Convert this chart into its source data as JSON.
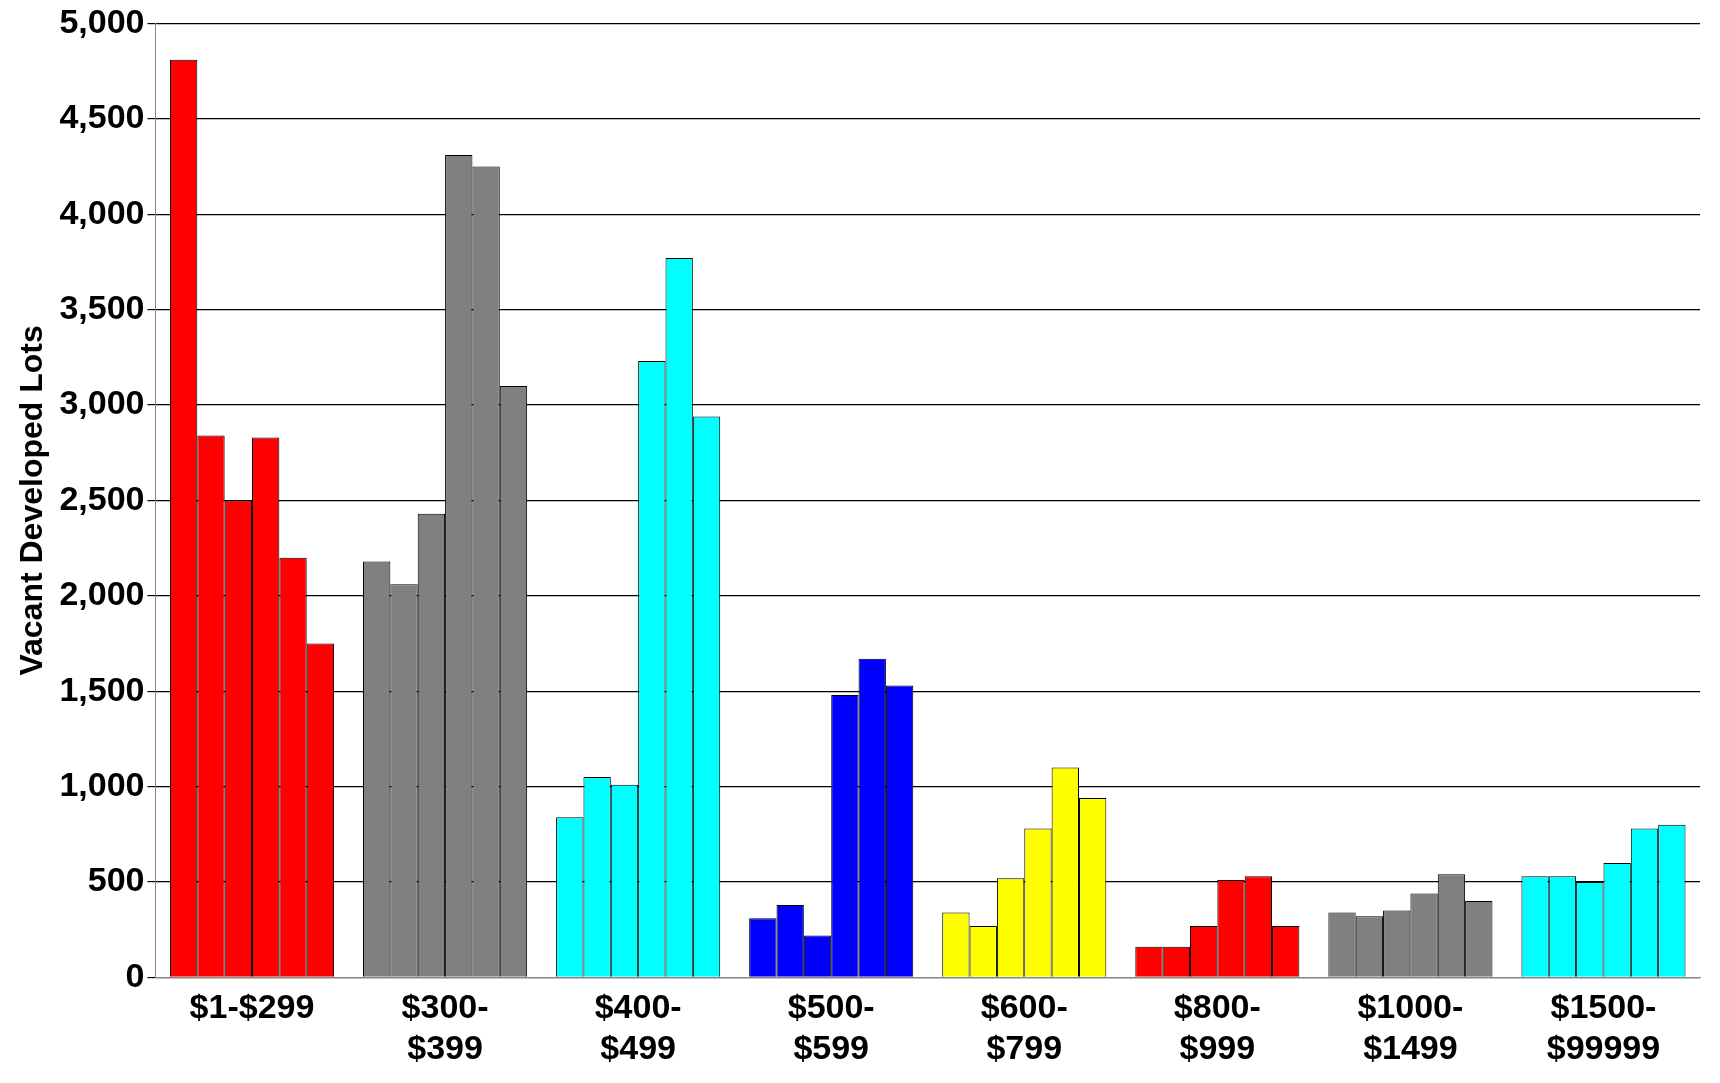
{
  "chart_data": {
    "type": "bar",
    "ylabel": "Vacant Developed Lots",
    "categories": [
      "$1-$299",
      "$300-$399",
      "$400-$499",
      "$500-$599",
      "$600-$799",
      "$800-$999",
      "$1000-$1499",
      "$1500-$99999"
    ],
    "series": [
      {
        "colors": [
          "#ff0000",
          "#808080",
          "#00ffff",
          "#0000ff",
          "#ffff00",
          "#ff0000",
          "#808080",
          "#00ffff"
        ],
        "values": [
          4810,
          2180,
          840,
          310,
          340,
          160,
          340,
          530
        ]
      },
      {
        "colors": [
          "#ff0000",
          "#808080",
          "#00ffff",
          "#0000ff",
          "#ffff00",
          "#ff0000",
          "#808080",
          "#00ffff"
        ],
        "values": [
          2840,
          2060,
          1050,
          380,
          270,
          160,
          320,
          530
        ]
      },
      {
        "colors": [
          "#ff0000",
          "#808080",
          "#00ffff",
          "#0000ff",
          "#ffff00",
          "#ff0000",
          "#808080",
          "#00ffff"
        ],
        "values": [
          2500,
          2430,
          1010,
          220,
          520,
          270,
          350,
          500
        ]
      },
      {
        "colors": [
          "#ff0000",
          "#808080",
          "#00ffff",
          "#0000ff",
          "#ffff00",
          "#ff0000",
          "#808080",
          "#00ffff"
        ],
        "values": [
          2830,
          4310,
          3230,
          1480,
          780,
          510,
          440,
          600
        ]
      },
      {
        "colors": [
          "#ff0000",
          "#808080",
          "#00ffff",
          "#0000ff",
          "#ffff00",
          "#ff0000",
          "#808080",
          "#00ffff"
        ],
        "values": [
          2200,
          4250,
          3770,
          1670,
          1100,
          530,
          540,
          780
        ]
      },
      {
        "colors": [
          "#ff0000",
          "#808080",
          "#00ffff",
          "#0000ff",
          "#ffff00",
          "#ff0000",
          "#808080",
          "#00ffff"
        ],
        "values": [
          1750,
          3100,
          2940,
          1530,
          940,
          270,
          400,
          800
        ]
      }
    ],
    "ylim": [
      0,
      5000
    ],
    "yticks": [
      0,
      {
        "value": 500,
        "label": "500"
      },
      {
        "value": 1000,
        "label": "1,000"
      },
      {
        "value": 1500,
        "label": "1,500"
      },
      {
        "value": 2000,
        "label": "2,000"
      },
      {
        "value": 2500,
        "label": "2,500"
      },
      {
        "value": 3000,
        "label": "3,000"
      },
      {
        "value": 3500,
        "label": "3,500"
      },
      {
        "value": 4000,
        "label": "4,000"
      },
      {
        "value": 4500,
        "label": "4,500"
      },
      {
        "value": 5000,
        "label": "5,000"
      }
    ],
    "grid": "y",
    "legend": false
  }
}
